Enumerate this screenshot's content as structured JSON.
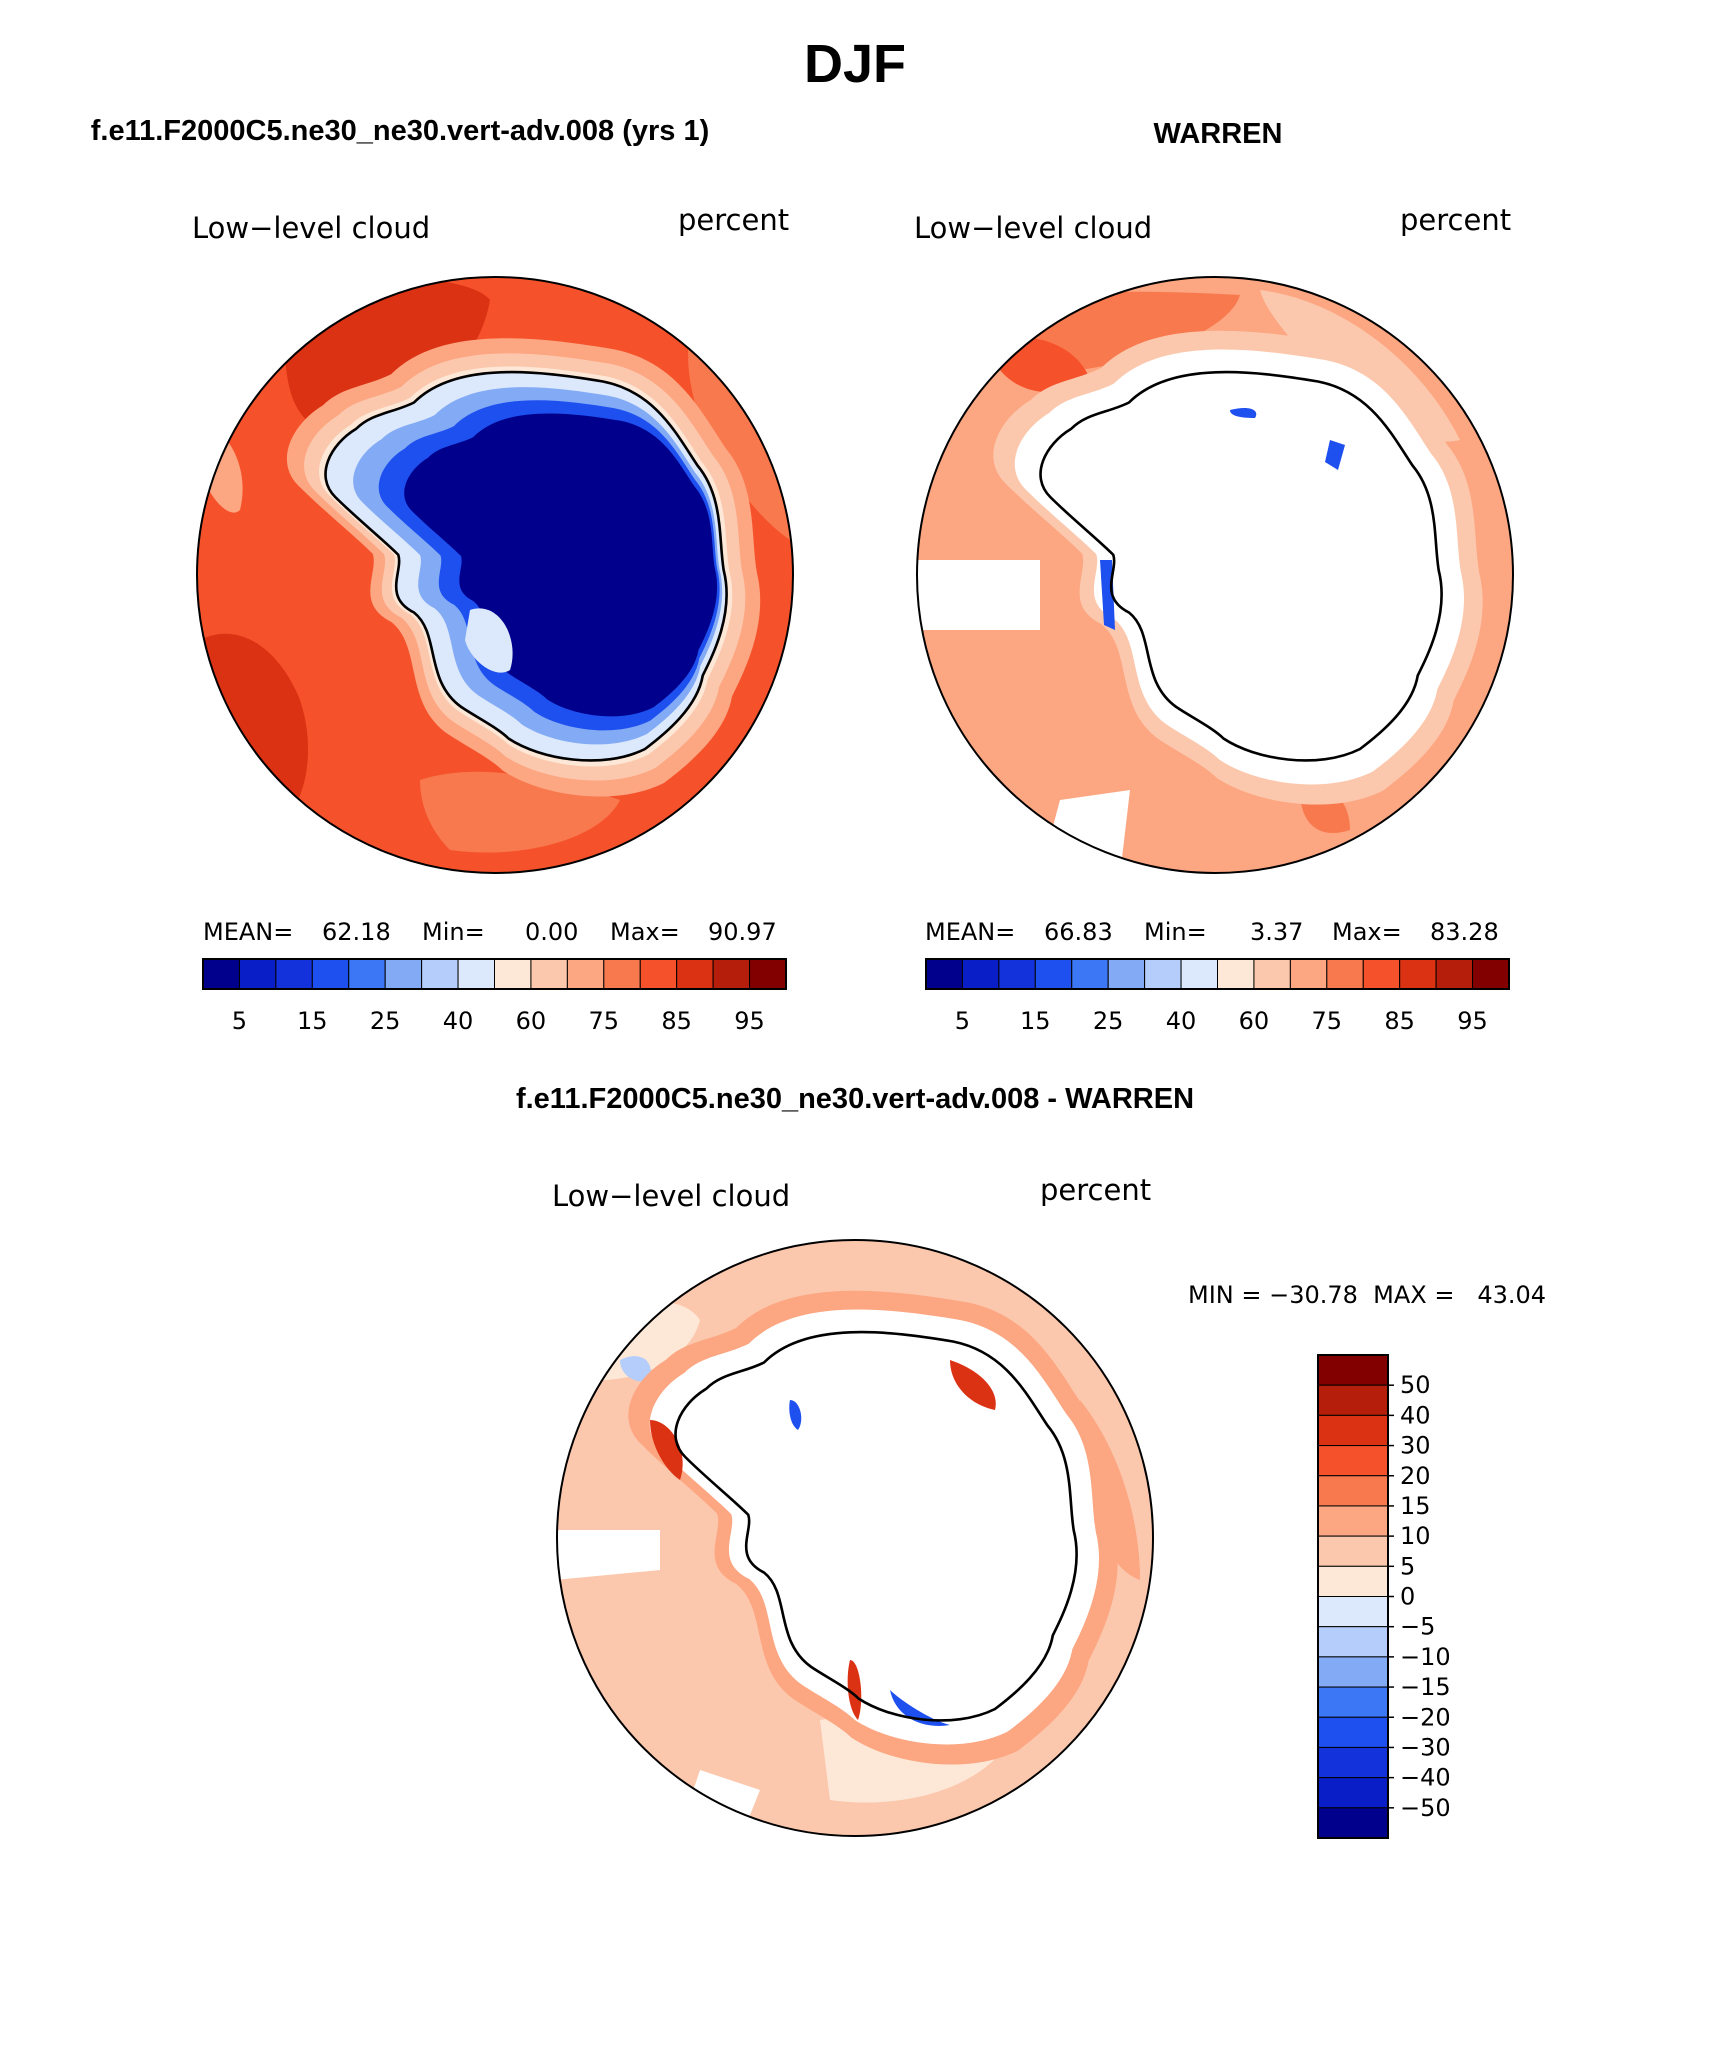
{
  "page": {
    "season_title": "DJF",
    "diff_title": "f.e11.F2000C5.ne30_ne30.vert-adv.008 - WARREN"
  },
  "panels": [
    {
      "case_title": "f.e11.F2000C5.ne30_ne30.vert-adv.008 (yrs 1)",
      "field": "Low−level cloud",
      "units": "percent",
      "stats": {
        "mean_label": "MEAN=",
        "mean": "62.18",
        "min_label": "Min=",
        "min": "0.00",
        "max_label": "Max=",
        "max": "90.97"
      }
    },
    {
      "case_title": "WARREN",
      "field": "Low−level cloud",
      "units": "percent",
      "stats": {
        "mean_label": "MEAN=",
        "mean": "66.83",
        "min_label": "Min=",
        "min": "3.37",
        "max_label": "Max=",
        "max": "83.28"
      }
    }
  ],
  "diff_panel": {
    "field": "Low−level cloud",
    "units": "percent",
    "minmax_text": "MIN = −30.78  MAX =   43.04"
  },
  "abs_colorbar": {
    "colors": [
      "#00008c",
      "#0a1ec8",
      "#1432dc",
      "#1e50f0",
      "#3c78f5",
      "#82aaf5",
      "#b4cdfa",
      "#dce9fc",
      "#fde8d8",
      "#fcc8ad",
      "#fca682",
      "#f9794e",
      "#f5522b",
      "#dc3214",
      "#b41e0a",
      "#820000"
    ],
    "labels": [
      "5",
      "15",
      "25",
      "40",
      "60",
      "75",
      "85",
      "95"
    ]
  },
  "diff_colorbar": {
    "colors": [
      "#820000",
      "#b41e0a",
      "#dc3214",
      "#f5522b",
      "#f9794e",
      "#fca682",
      "#fcc8ad",
      "#fde8d8",
      "#dce9fc",
      "#b4cdfa",
      "#82aaf5",
      "#3c78f5",
      "#1e50f0",
      "#1432dc",
      "#0a1ec8",
      "#00008c"
    ],
    "labels": [
      "50",
      "40",
      "30",
      "20",
      "15",
      "10",
      "5",
      "0",
      "−5",
      "−10",
      "−15",
      "−20",
      "−30",
      "−40",
      "−50"
    ]
  },
  "map_palette": {
    "ocean_high": "#f5522b",
    "ocean_mid": "#f9794e",
    "ocean_dark": "#dc3214",
    "ocean_light": "#fca682",
    "ocean_pale": "#fcc8ad",
    "ice_blue_dark": "#00008c",
    "ice_blue_mid": "#1e50f0",
    "ice_blue_light": "#82aaf5",
    "ice_pale": "#dce9fc",
    "missing": "#ffffff",
    "coast": "#000000"
  }
}
